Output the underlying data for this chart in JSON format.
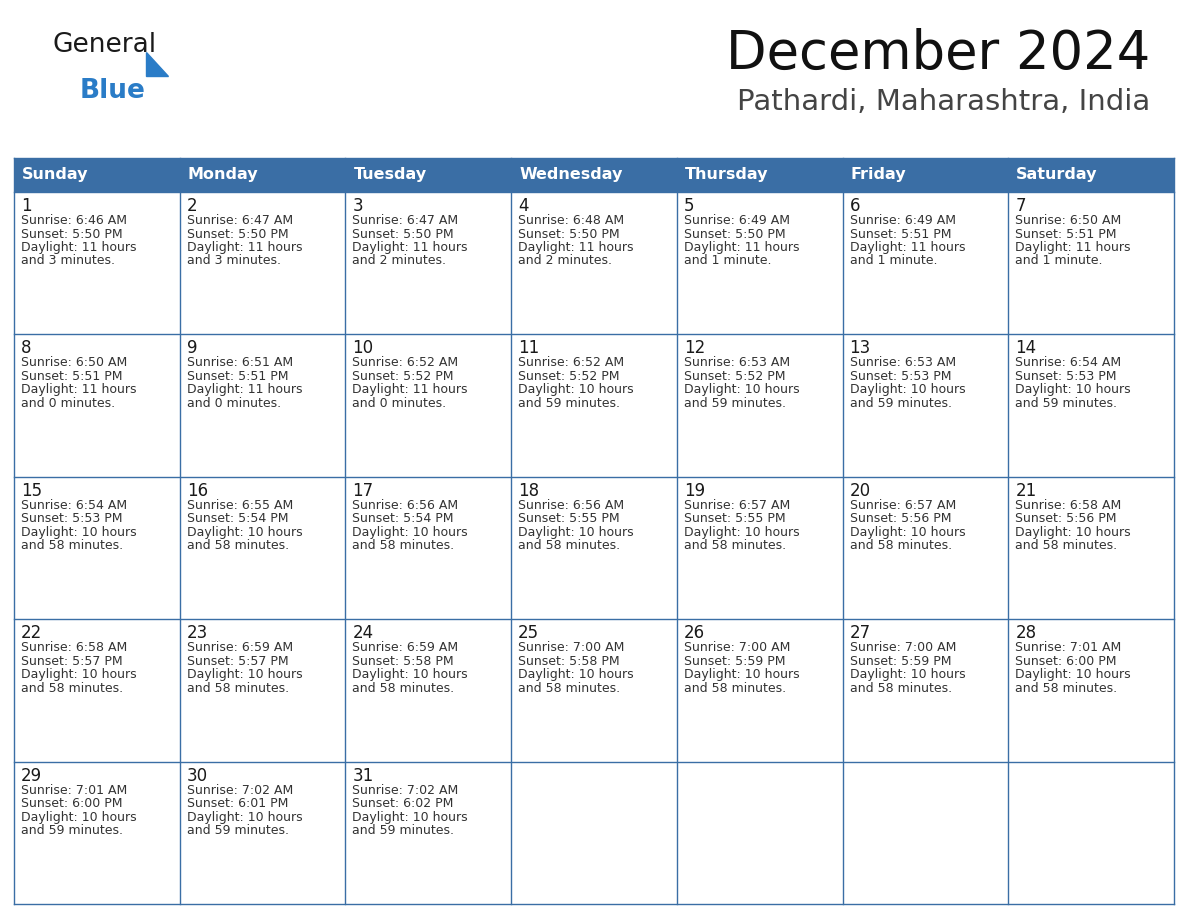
{
  "title": "December 2024",
  "subtitle": "Pathardi, Maharashtra, India",
  "header_bg_color": "#3a6ea5",
  "header_text_color": "#ffffff",
  "border_color": "#3a6ea5",
  "day_headers": [
    "Sunday",
    "Monday",
    "Tuesday",
    "Wednesday",
    "Thursday",
    "Friday",
    "Saturday"
  ],
  "weeks": [
    [
      {
        "day": 1,
        "sunrise": "6:46 AM",
        "sunset": "5:50 PM",
        "daylight": "11 hours and 3 minutes."
      },
      {
        "day": 2,
        "sunrise": "6:47 AM",
        "sunset": "5:50 PM",
        "daylight": "11 hours and 3 minutes."
      },
      {
        "day": 3,
        "sunrise": "6:47 AM",
        "sunset": "5:50 PM",
        "daylight": "11 hours and 2 minutes."
      },
      {
        "day": 4,
        "sunrise": "6:48 AM",
        "sunset": "5:50 PM",
        "daylight": "11 hours and 2 minutes."
      },
      {
        "day": 5,
        "sunrise": "6:49 AM",
        "sunset": "5:50 PM",
        "daylight": "11 hours and 1 minute."
      },
      {
        "day": 6,
        "sunrise": "6:49 AM",
        "sunset": "5:51 PM",
        "daylight": "11 hours and 1 minute."
      },
      {
        "day": 7,
        "sunrise": "6:50 AM",
        "sunset": "5:51 PM",
        "daylight": "11 hours and 1 minute."
      }
    ],
    [
      {
        "day": 8,
        "sunrise": "6:50 AM",
        "sunset": "5:51 PM",
        "daylight": "11 hours and 0 minutes."
      },
      {
        "day": 9,
        "sunrise": "6:51 AM",
        "sunset": "5:51 PM",
        "daylight": "11 hours and 0 minutes."
      },
      {
        "day": 10,
        "sunrise": "6:52 AM",
        "sunset": "5:52 PM",
        "daylight": "11 hours and 0 minutes."
      },
      {
        "day": 11,
        "sunrise": "6:52 AM",
        "sunset": "5:52 PM",
        "daylight": "10 hours and 59 minutes."
      },
      {
        "day": 12,
        "sunrise": "6:53 AM",
        "sunset": "5:52 PM",
        "daylight": "10 hours and 59 minutes."
      },
      {
        "day": 13,
        "sunrise": "6:53 AM",
        "sunset": "5:53 PM",
        "daylight": "10 hours and 59 minutes."
      },
      {
        "day": 14,
        "sunrise": "6:54 AM",
        "sunset": "5:53 PM",
        "daylight": "10 hours and 59 minutes."
      }
    ],
    [
      {
        "day": 15,
        "sunrise": "6:54 AM",
        "sunset": "5:53 PM",
        "daylight": "10 hours and 58 minutes."
      },
      {
        "day": 16,
        "sunrise": "6:55 AM",
        "sunset": "5:54 PM",
        "daylight": "10 hours and 58 minutes."
      },
      {
        "day": 17,
        "sunrise": "6:56 AM",
        "sunset": "5:54 PM",
        "daylight": "10 hours and 58 minutes."
      },
      {
        "day": 18,
        "sunrise": "6:56 AM",
        "sunset": "5:55 PM",
        "daylight": "10 hours and 58 minutes."
      },
      {
        "day": 19,
        "sunrise": "6:57 AM",
        "sunset": "5:55 PM",
        "daylight": "10 hours and 58 minutes."
      },
      {
        "day": 20,
        "sunrise": "6:57 AM",
        "sunset": "5:56 PM",
        "daylight": "10 hours and 58 minutes."
      },
      {
        "day": 21,
        "sunrise": "6:58 AM",
        "sunset": "5:56 PM",
        "daylight": "10 hours and 58 minutes."
      }
    ],
    [
      {
        "day": 22,
        "sunrise": "6:58 AM",
        "sunset": "5:57 PM",
        "daylight": "10 hours and 58 minutes."
      },
      {
        "day": 23,
        "sunrise": "6:59 AM",
        "sunset": "5:57 PM",
        "daylight": "10 hours and 58 minutes."
      },
      {
        "day": 24,
        "sunrise": "6:59 AM",
        "sunset": "5:58 PM",
        "daylight": "10 hours and 58 minutes."
      },
      {
        "day": 25,
        "sunrise": "7:00 AM",
        "sunset": "5:58 PM",
        "daylight": "10 hours and 58 minutes."
      },
      {
        "day": 26,
        "sunrise": "7:00 AM",
        "sunset": "5:59 PM",
        "daylight": "10 hours and 58 minutes."
      },
      {
        "day": 27,
        "sunrise": "7:00 AM",
        "sunset": "5:59 PM",
        "daylight": "10 hours and 58 minutes."
      },
      {
        "day": 28,
        "sunrise": "7:01 AM",
        "sunset": "6:00 PM",
        "daylight": "10 hours and 58 minutes."
      }
    ],
    [
      {
        "day": 29,
        "sunrise": "7:01 AM",
        "sunset": "6:00 PM",
        "daylight": "10 hours and 59 minutes."
      },
      {
        "day": 30,
        "sunrise": "7:02 AM",
        "sunset": "6:01 PM",
        "daylight": "10 hours and 59 minutes."
      },
      {
        "day": 31,
        "sunrise": "7:02 AM",
        "sunset": "6:02 PM",
        "daylight": "10 hours and 59 minutes."
      },
      null,
      null,
      null,
      null
    ]
  ],
  "logo_color_general": "#1a1a1a",
  "logo_color_blue": "#2a7cc7",
  "logo_triangle_color": "#2a7cc7",
  "fig_width": 11.88,
  "fig_height": 9.18,
  "dpi": 100
}
